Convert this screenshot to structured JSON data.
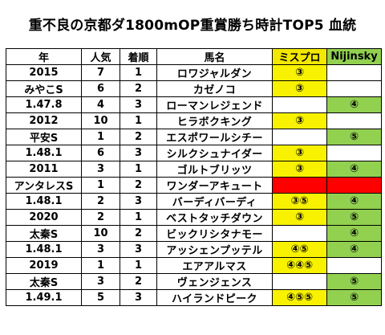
{
  "title": "重不良の京都ダ1800mOP重賞勝ち時計TOP5 血統",
  "headers": [
    "年",
    "人気",
    "着順",
    "馬名",
    "ミスプロ",
    "Nijinsky"
  ],
  "colors": {
    "mispro_header": "#f2e800",
    "nijinsky_header": "#92d050",
    "yellow_cell": "#f8f200",
    "green_cell": "#92d050",
    "red_cell": "#ff0000"
  },
  "rows": [
    {
      "year": "2015",
      "popularity": "7",
      "finish": "1",
      "horse": "ロワジャルダン",
      "mispro": "③",
      "mispro_color": "yellow",
      "nijinsky": "",
      "nijinsky_color": ""
    },
    {
      "year": "みやこS",
      "popularity": "6",
      "finish": "2",
      "horse": "カゼノコ",
      "mispro": "③",
      "mispro_color": "yellow",
      "nijinsky": "",
      "nijinsky_color": ""
    },
    {
      "year": "1.47.8",
      "popularity": "4",
      "finish": "3",
      "horse": "ローマンレジェンド",
      "mispro": "",
      "mispro_color": "",
      "nijinsky": "④",
      "nijinsky_color": "green"
    },
    {
      "year": "2012",
      "popularity": "10",
      "finish": "1",
      "horse": "ヒラボクキング",
      "mispro": "③",
      "mispro_color": "yellow",
      "nijinsky": "",
      "nijinsky_color": ""
    },
    {
      "year": "平安S",
      "popularity": "1",
      "finish": "2",
      "horse": "エスポワールシチー",
      "mispro": "",
      "mispro_color": "",
      "nijinsky": "⑤",
      "nijinsky_color": "green"
    },
    {
      "year": "1.48.1",
      "popularity": "6",
      "finish": "3",
      "horse": "シルクシュナイダー",
      "mispro": "③",
      "mispro_color": "yellow",
      "nijinsky": "",
      "nijinsky_color": ""
    },
    {
      "year": "2011",
      "popularity": "3",
      "finish": "1",
      "horse": "ゴルトブリッツ",
      "mispro": "③",
      "mispro_color": "yellow",
      "nijinsky": "④",
      "nijinsky_color": "green"
    },
    {
      "year": "アンタレスS",
      "popularity": "1",
      "finish": "2",
      "horse": "ワンダーアキュート",
      "mispro": "",
      "mispro_color": "red",
      "nijinsky": "",
      "nijinsky_color": "red"
    },
    {
      "year": "1.48.1",
      "popularity": "2",
      "finish": "3",
      "horse": "バーディバーディ",
      "mispro": "③⑤",
      "mispro_color": "yellow",
      "nijinsky": "④",
      "nijinsky_color": "green"
    },
    {
      "year": "2020",
      "popularity": "2",
      "finish": "1",
      "horse": "ベストタッチダウン",
      "mispro": "③",
      "mispro_color": "yellow",
      "nijinsky": "⑤",
      "nijinsky_color": "green"
    },
    {
      "year": "太秦S",
      "popularity": "10",
      "finish": "2",
      "horse": "ビックリシタナモー",
      "mispro": "",
      "mispro_color": "",
      "nijinsky": "④",
      "nijinsky_color": "green"
    },
    {
      "year": "1.48.1",
      "popularity": "3",
      "finish": "3",
      "horse": "アッシェンプッテル",
      "mispro": "④⑤",
      "mispro_color": "yellow",
      "nijinsky": "④",
      "nijinsky_color": "green"
    },
    {
      "year": "2019",
      "popularity": "1",
      "finish": "1",
      "horse": "エアアルマス",
      "mispro": "④④⑤",
      "mispro_color": "yellow",
      "nijinsky": "",
      "nijinsky_color": ""
    },
    {
      "year": "太秦S",
      "popularity": "3",
      "finish": "2",
      "horse": "ヴェンジェンス",
      "mispro": "",
      "mispro_color": "",
      "nijinsky": "⑤",
      "nijinsky_color": "green"
    },
    {
      "year": "1.49.1",
      "popularity": "5",
      "finish": "3",
      "horse": "ハイランドピーク",
      "mispro": "④⑤⑤",
      "mispro_color": "yellow",
      "nijinsky": "⑤",
      "nijinsky_color": "green"
    }
  ]
}
